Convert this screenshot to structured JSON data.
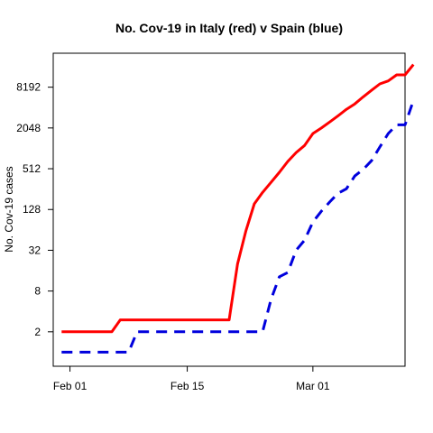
{
  "chart_data": {
    "type": "line",
    "title": "No. Cov-19 in Italy (red) v Spain (blue)",
    "xlabel": "",
    "ylabel": "No. Cov-19 cases",
    "y_scale": "log2",
    "grid": false,
    "legend": "none",
    "xlim": [
      "2020-01-30",
      "2020-03-12"
    ],
    "ylim": [
      0.62,
      26000
    ],
    "x_ticks": [
      {
        "date": "2020-02-01",
        "label": "Feb 01"
      },
      {
        "date": "2020-02-15",
        "label": "Feb 15"
      },
      {
        "date": "2020-03-01",
        "label": "Mar 01"
      }
    ],
    "y_ticks": [
      {
        "value": 2,
        "label": "2"
      },
      {
        "value": 8,
        "label": "8"
      },
      {
        "value": 32,
        "label": "32"
      },
      {
        "value": 128,
        "label": "128"
      },
      {
        "value": 512,
        "label": "512"
      },
      {
        "value": 2048,
        "label": "2048"
      },
      {
        "value": 8192,
        "label": "8192"
      }
    ],
    "series": [
      {
        "color": "#ff0000",
        "dash": "solid",
        "points": [
          [
            "2020-01-31",
            2
          ],
          [
            "2020-02-06",
            2
          ],
          [
            "2020-02-07",
            3
          ],
          [
            "2020-02-20",
            3
          ],
          [
            "2020-02-21",
            20
          ],
          [
            "2020-02-22",
            62
          ],
          [
            "2020-02-23",
            155
          ],
          [
            "2020-02-24",
            229
          ],
          [
            "2020-02-25",
            322
          ],
          [
            "2020-02-26",
            453
          ],
          [
            "2020-02-27",
            655
          ],
          [
            "2020-02-28",
            888
          ],
          [
            "2020-02-29",
            1128
          ],
          [
            "2020-03-01",
            1694
          ],
          [
            "2020-03-02",
            2036
          ],
          [
            "2020-03-03",
            2502
          ],
          [
            "2020-03-04",
            3089
          ],
          [
            "2020-03-05",
            3858
          ],
          [
            "2020-03-06",
            4636
          ],
          [
            "2020-03-07",
            5883
          ],
          [
            "2020-03-08",
            7375
          ],
          [
            "2020-03-09",
            9172
          ],
          [
            "2020-03-10",
            10149
          ],
          [
            "2020-03-11",
            12462
          ],
          [
            "2020-03-12",
            12462
          ],
          [
            "2020-03-13",
            17660
          ]
        ]
      },
      {
        "color": "#0000dd",
        "dash": "dashed",
        "points": [
          [
            "2020-01-31",
            1
          ],
          [
            "2020-02-08",
            1
          ],
          [
            "2020-02-09",
            2
          ],
          [
            "2020-02-24",
            2
          ],
          [
            "2020-02-25",
            6
          ],
          [
            "2020-02-26",
            13
          ],
          [
            "2020-02-27",
            15
          ],
          [
            "2020-02-28",
            32
          ],
          [
            "2020-02-29",
            45
          ],
          [
            "2020-03-01",
            84
          ],
          [
            "2020-03-02",
            120
          ],
          [
            "2020-03-03",
            165
          ],
          [
            "2020-03-04",
            222
          ],
          [
            "2020-03-05",
            259
          ],
          [
            "2020-03-06",
            400
          ],
          [
            "2020-03-07",
            500
          ],
          [
            "2020-03-08",
            673
          ],
          [
            "2020-03-09",
            1073
          ],
          [
            "2020-03-10",
            1695
          ],
          [
            "2020-03-11",
            2277
          ],
          [
            "2020-03-12",
            2277
          ],
          [
            "2020-03-13",
            5232
          ]
        ]
      }
    ]
  }
}
